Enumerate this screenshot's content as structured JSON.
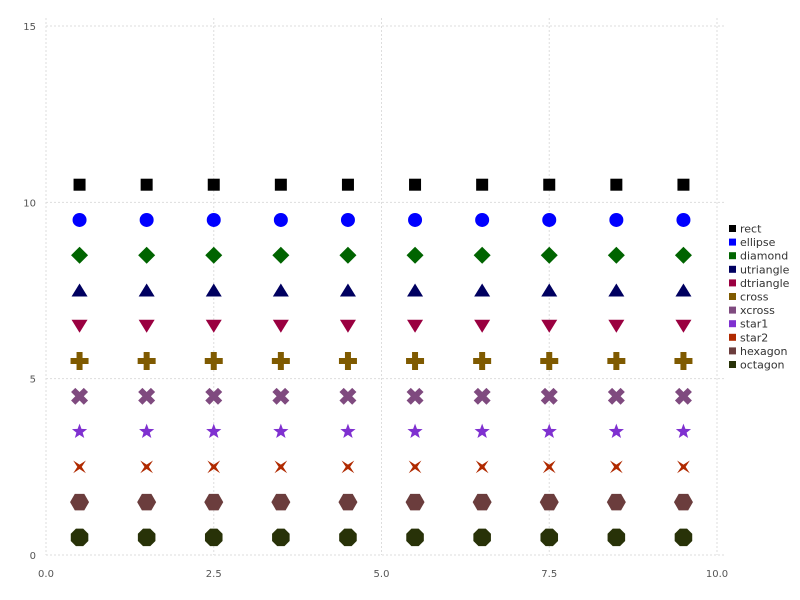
{
  "chart_data": {
    "type": "scatter",
    "title": "",
    "xlabel": "",
    "ylabel": "",
    "xlim": [
      0,
      10
    ],
    "ylim": [
      0,
      15
    ],
    "x_ticks": [
      "0.0",
      "2.5",
      "5.0",
      "7.5",
      "10.0"
    ],
    "y_ticks": [
      "0",
      "5",
      "10",
      "15"
    ],
    "grid": true,
    "legend_position": "right",
    "x": [
      0.5,
      1.5,
      2.5,
      3.5,
      4.5,
      5.5,
      6.5,
      7.5,
      8.5,
      9.5
    ],
    "series": [
      {
        "name": "rect",
        "y": 10.5,
        "marker": "rect",
        "color": "#000000"
      },
      {
        "name": "ellipse",
        "y": 9.5,
        "marker": "ellipse",
        "color": "#0000ff"
      },
      {
        "name": "diamond",
        "y": 8.5,
        "marker": "diamond",
        "color": "#006400"
      },
      {
        "name": "utriangle",
        "y": 7.5,
        "marker": "utriangle",
        "color": "#000060"
      },
      {
        "name": "dtriangle",
        "y": 6.5,
        "marker": "dtriangle",
        "color": "#9a0040"
      },
      {
        "name": "cross",
        "y": 5.5,
        "marker": "cross",
        "color": "#7f5a00"
      },
      {
        "name": "xcross",
        "y": 4.5,
        "marker": "xcross",
        "color": "#7f4a7f"
      },
      {
        "name": "star1",
        "y": 3.5,
        "marker": "star1",
        "color": "#7f30d0"
      },
      {
        "name": "star2",
        "y": 2.5,
        "marker": "star2",
        "color": "#b02a00"
      },
      {
        "name": "hexagon",
        "y": 1.5,
        "marker": "hexagon",
        "color": "#6b3d3d"
      },
      {
        "name": "octagon",
        "y": 0.5,
        "marker": "octagon",
        "color": "#283208"
      }
    ]
  }
}
